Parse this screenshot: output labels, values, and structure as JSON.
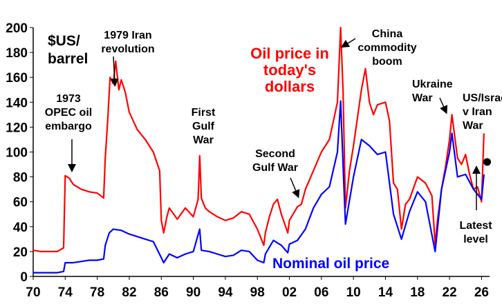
{
  "chart_data": {
    "type": "line",
    "unit_label": [
      "$US/",
      "barrel"
    ],
    "xlim": [
      1970,
      2027
    ],
    "ylim": [
      0,
      200
    ],
    "x_ticks": [
      1970,
      1974,
      1978,
      1982,
      1986,
      1990,
      1994,
      1998,
      2002,
      2006,
      2010,
      2014,
      2018,
      2022,
      2026
    ],
    "x_tick_labels": [
      "70",
      "74",
      "78",
      "82",
      "86",
      "90",
      "94",
      "98",
      "02",
      "06",
      "10",
      "14",
      "18",
      "22",
      "26"
    ],
    "y_ticks": [
      0,
      20,
      40,
      60,
      80,
      100,
      120,
      140,
      160,
      180,
      200
    ],
    "y_tick_labels": [
      "0",
      "20",
      "40",
      "60",
      "80",
      "100",
      "120",
      "140",
      "160",
      "180",
      "200"
    ],
    "colors": {
      "real": "#ff0000",
      "nominal": "#0000ff",
      "text": "#000000"
    },
    "series": [
      {
        "name": "Oil price in today's dollars",
        "color": "#ff0000",
        "points": [
          [
            1970,
            21
          ],
          [
            1971,
            20
          ],
          [
            1972,
            20
          ],
          [
            1973,
            20
          ],
          [
            1973.8,
            23
          ],
          [
            1974,
            81
          ],
          [
            1974.5,
            79
          ],
          [
            1975,
            74
          ],
          [
            1976,
            70
          ],
          [
            1977,
            68
          ],
          [
            1978,
            67
          ],
          [
            1978.8,
            63
          ],
          [
            1979,
            95
          ],
          [
            1979.3,
            125
          ],
          [
            1979.6,
            160
          ],
          [
            1980,
            155
          ],
          [
            1980.3,
            173
          ],
          [
            1980.7,
            150
          ],
          [
            1981,
            158
          ],
          [
            1981.5,
            148
          ],
          [
            1982,
            132
          ],
          [
            1982.5,
            125
          ],
          [
            1983,
            118
          ],
          [
            1984,
            110
          ],
          [
            1985,
            100
          ],
          [
            1985.8,
            85
          ],
          [
            1986,
            45
          ],
          [
            1986.3,
            35
          ],
          [
            1986.7,
            48
          ],
          [
            1987,
            55
          ],
          [
            1988,
            46
          ],
          [
            1989,
            55
          ],
          [
            1990,
            48
          ],
          [
            1990.6,
            62
          ],
          [
            1990.8,
            97
          ],
          [
            1991,
            63
          ],
          [
            1991.5,
            55
          ],
          [
            1992,
            52
          ],
          [
            1993,
            48
          ],
          [
            1994,
            45
          ],
          [
            1995,
            47
          ],
          [
            1996,
            52
          ],
          [
            1997,
            50
          ],
          [
            1998,
            38
          ],
          [
            1998.8,
            25
          ],
          [
            1999,
            35
          ],
          [
            1999.5,
            48
          ],
          [
            2000,
            58
          ],
          [
            2000.5,
            62
          ],
          [
            2001,
            50
          ],
          [
            2001.8,
            35
          ],
          [
            2002,
            45
          ],
          [
            2003,
            56
          ],
          [
            2003.5,
            58
          ],
          [
            2004,
            70
          ],
          [
            2005,
            85
          ],
          [
            2006,
            100
          ],
          [
            2007,
            110
          ],
          [
            2008,
            140
          ],
          [
            2008.4,
            200
          ],
          [
            2008.7,
            150
          ],
          [
            2009,
            55
          ],
          [
            2009.5,
            85
          ],
          [
            2010,
            105
          ],
          [
            2011,
            150
          ],
          [
            2011.5,
            167
          ],
          [
            2012,
            140
          ],
          [
            2012.5,
            130
          ],
          [
            2013,
            138
          ],
          [
            2014,
            140
          ],
          [
            2014.5,
            125
          ],
          [
            2015,
            75
          ],
          [
            2015.5,
            70
          ],
          [
            2016,
            38
          ],
          [
            2016.5,
            58
          ],
          [
            2017,
            62
          ],
          [
            2018,
            80
          ],
          [
            2019,
            75
          ],
          [
            2019.8,
            65
          ],
          [
            2020.2,
            26
          ],
          [
            2020.5,
            45
          ],
          [
            2021,
            70
          ],
          [
            2021.5,
            88
          ],
          [
            2022,
            110
          ],
          [
            2022.3,
            130
          ],
          [
            2022.7,
            110
          ],
          [
            2023,
            95
          ],
          [
            2023.5,
            90
          ],
          [
            2024,
            98
          ],
          [
            2024.5,
            82
          ],
          [
            2025,
            70
          ],
          [
            2025.5,
            72
          ],
          [
            2026,
            60
          ],
          [
            2026.3,
            115
          ]
        ]
      },
      {
        "name": "Nominal oil price",
        "color": "#0000ff",
        "points": [
          [
            1970,
            3
          ],
          [
            1971,
            3
          ],
          [
            1972,
            3
          ],
          [
            1973,
            3
          ],
          [
            1973.8,
            4
          ],
          [
            1974,
            11
          ],
          [
            1975,
            11
          ],
          [
            1976,
            12
          ],
          [
            1977,
            13
          ],
          [
            1978,
            13
          ],
          [
            1978.8,
            14
          ],
          [
            1979,
            25
          ],
          [
            1979.5,
            35
          ],
          [
            1980,
            38
          ],
          [
            1981,
            37
          ],
          [
            1982,
            34
          ],
          [
            1983,
            32
          ],
          [
            1984,
            30
          ],
          [
            1985,
            28
          ],
          [
            1986,
            15
          ],
          [
            1986.3,
            11
          ],
          [
            1987,
            18
          ],
          [
            1988,
            15
          ],
          [
            1989,
            18
          ],
          [
            1990,
            20
          ],
          [
            1990.8,
            38
          ],
          [
            1991,
            21
          ],
          [
            1992,
            20
          ],
          [
            1993,
            18
          ],
          [
            1994,
            16
          ],
          [
            1995,
            17
          ],
          [
            1996,
            21
          ],
          [
            1997,
            20
          ],
          [
            1998,
            13
          ],
          [
            1998.8,
            11
          ],
          [
            1999,
            18
          ],
          [
            2000,
            29
          ],
          [
            2001,
            25
          ],
          [
            2001.8,
            19
          ],
          [
            2002,
            26
          ],
          [
            2003,
            29
          ],
          [
            2004,
            38
          ],
          [
            2005,
            55
          ],
          [
            2006,
            66
          ],
          [
            2007,
            72
          ],
          [
            2008,
            100
          ],
          [
            2008.4,
            141
          ],
          [
            2008.7,
            90
          ],
          [
            2009,
            42
          ],
          [
            2010,
            80
          ],
          [
            2011,
            110
          ],
          [
            2012,
            105
          ],
          [
            2013,
            98
          ],
          [
            2014,
            100
          ],
          [
            2015,
            50
          ],
          [
            2016,
            30
          ],
          [
            2017,
            52
          ],
          [
            2018,
            68
          ],
          [
            2019,
            60
          ],
          [
            2020.2,
            20
          ],
          [
            2021,
            70
          ],
          [
            2022,
            100
          ],
          [
            2022.3,
            115
          ],
          [
            2023,
            80
          ],
          [
            2024,
            82
          ],
          [
            2025,
            70
          ],
          [
            2026,
            62
          ],
          [
            2026.3,
            82
          ]
        ]
      }
    ],
    "latest_point": [
      2026.7,
      92
    ],
    "series_labels": {
      "real": [
        "Oil price in",
        "today's",
        "dollars"
      ],
      "nominal": "Nominal oil price"
    },
    "annotations": [
      {
        "id": "oil-embargo",
        "lines": [
          "1973",
          "OPEC oil",
          "embargo"
        ]
      },
      {
        "id": "iran-revolution",
        "lines": [
          "1979 Iran",
          "revolution"
        ]
      },
      {
        "id": "first-gulf",
        "lines": [
          "First",
          "Gulf",
          "War"
        ]
      },
      {
        "id": "second-gulf",
        "lines": [
          "Second",
          "Gulf War"
        ]
      },
      {
        "id": "china-boom",
        "lines": [
          "China",
          "commodity",
          "boom"
        ]
      },
      {
        "id": "ukraine-war",
        "lines": [
          "Ukraine",
          "War"
        ]
      },
      {
        "id": "us-israel-iran",
        "lines": [
          "US/Israel",
          "v Iran",
          "War"
        ]
      },
      {
        "id": "latest-level",
        "lines": [
          "Latest",
          "level"
        ]
      }
    ]
  }
}
